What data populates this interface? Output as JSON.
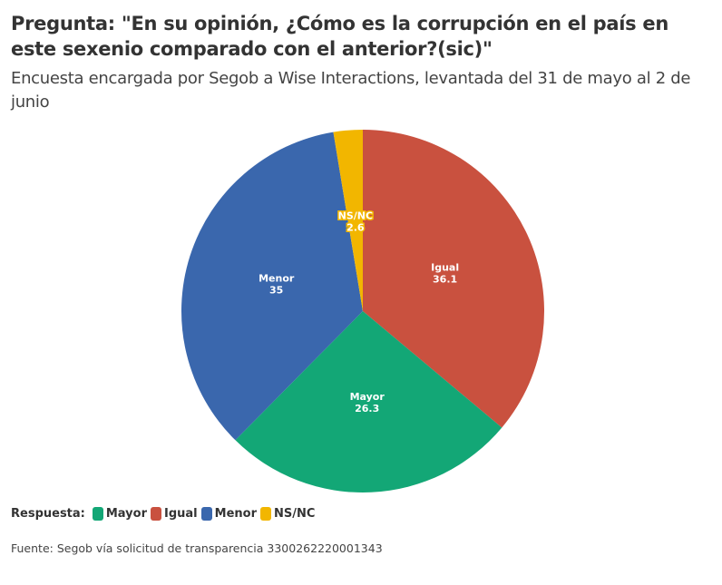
{
  "title": "Pregunta: \"En su opinión, ¿Cómo es la corrupción en el país en este sexenio comparado con el anterior?(sic)\"",
  "subtitle": "Encuesta encargada por Segob a Wise Interactions, levantada del 31 de mayo al 2 de junio",
  "source": "Fuente: Segob vía solicitud de transparencia 3300262220001343",
  "chart_data": {
    "type": "pie",
    "start": "top",
    "direction": "clockwise",
    "slices": [
      {
        "label": "Igual",
        "value": 36.1,
        "color": "#c9513f"
      },
      {
        "label": "Mayor",
        "value": 26.3,
        "color": "#13a776"
      },
      {
        "label": "Menor",
        "value": 35,
        "color": "#3a67ad"
      },
      {
        "label": "NS/NC",
        "value": 2.6,
        "color": "#f2b600"
      }
    ],
    "legend": {
      "title": "Respuesta:",
      "placement": "bottom-left",
      "entries": [
        {
          "label": "Mayor",
          "color": "#13a776"
        },
        {
          "label": "Igual",
          "color": "#c9513f"
        },
        {
          "label": "Menor",
          "color": "#3a67ad"
        },
        {
          "label": "NS/NC",
          "color": "#f2b600"
        }
      ]
    }
  }
}
